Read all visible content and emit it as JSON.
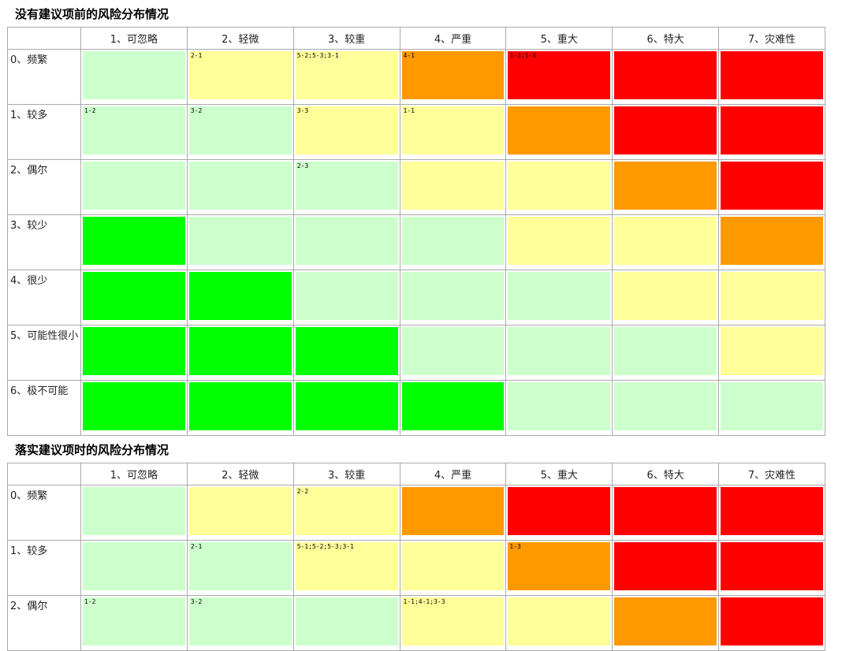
{
  "sections": [
    {
      "title": "没有建议项前的风险分布情况",
      "columns": [
        "1、可忽略",
        "2、轻微",
        "3、较重",
        "4、严重",
        "5、重大",
        "6、特大",
        "7、灾难性"
      ],
      "rows": [
        {
          "label": "0、频繁",
          "cells": [
            {
              "color": "#ccffcc"
            },
            {
              "color": "#ffff99",
              "text": "2-1"
            },
            {
              "color": "#ffff99",
              "text": "5-2;5-3;3-1"
            },
            {
              "color": "#ff9900",
              "text": "4-1"
            },
            {
              "color": "#ff0000",
              "text": "1-3;1-4"
            },
            {
              "color": "#ff0000"
            },
            {
              "color": "#ff0000"
            }
          ]
        },
        {
          "label": "1、较多",
          "cells": [
            {
              "color": "#ccffcc",
              "text": "1-2"
            },
            {
              "color": "#ccffcc",
              "text": "3-2"
            },
            {
              "color": "#ffff99",
              "text": "3-3"
            },
            {
              "color": "#ffff99",
              "text": "1-1"
            },
            {
              "color": "#ff9900"
            },
            {
              "color": "#ff0000"
            },
            {
              "color": "#ff0000"
            }
          ]
        },
        {
          "label": "2、偶尔",
          "cells": [
            {
              "color": "#ccffcc"
            },
            {
              "color": "#ccffcc"
            },
            {
              "color": "#ccffcc",
              "text": "2-3"
            },
            {
              "color": "#ffff99"
            },
            {
              "color": "#ffff99"
            },
            {
              "color": "#ff9900"
            },
            {
              "color": "#ff0000"
            }
          ]
        },
        {
          "label": "3、较少",
          "cells": [
            {
              "color": "#00ff00"
            },
            {
              "color": "#ccffcc"
            },
            {
              "color": "#ccffcc"
            },
            {
              "color": "#ccffcc"
            },
            {
              "color": "#ffff99"
            },
            {
              "color": "#ffff99"
            },
            {
              "color": "#ff9900"
            }
          ]
        },
        {
          "label": "4、很少",
          "cells": [
            {
              "color": "#00ff00"
            },
            {
              "color": "#00ff00"
            },
            {
              "color": "#ccffcc"
            },
            {
              "color": "#ccffcc"
            },
            {
              "color": "#ccffcc"
            },
            {
              "color": "#ffff99"
            },
            {
              "color": "#ffff99"
            }
          ]
        },
        {
          "label": "5、可能性很小",
          "cells": [
            {
              "color": "#00ff00"
            },
            {
              "color": "#00ff00"
            },
            {
              "color": "#00ff00"
            },
            {
              "color": "#ccffcc"
            },
            {
              "color": "#ccffcc"
            },
            {
              "color": "#ccffcc"
            },
            {
              "color": "#ffff99"
            }
          ]
        },
        {
          "label": "6、极不可能",
          "cells": [
            {
              "color": "#00ff00"
            },
            {
              "color": "#00ff00"
            },
            {
              "color": "#00ff00"
            },
            {
              "color": "#00ff00"
            },
            {
              "color": "#ccffcc"
            },
            {
              "color": "#ccffcc"
            },
            {
              "color": "#ccffcc"
            }
          ]
        }
      ]
    },
    {
      "title": "落实建议项时的风险分布情况",
      "columns": [
        "1、可忽略",
        "2、轻微",
        "3、较重",
        "4、严重",
        "5、重大",
        "6、特大",
        "7、灾难性"
      ],
      "rows": [
        {
          "label": "0、频繁",
          "cells": [
            {
              "color": "#ccffcc"
            },
            {
              "color": "#ffff99"
            },
            {
              "color": "#ffff99",
              "text": "2-2"
            },
            {
              "color": "#ff9900"
            },
            {
              "color": "#ff0000"
            },
            {
              "color": "#ff0000"
            },
            {
              "color": "#ff0000"
            }
          ]
        },
        {
          "label": "1、较多",
          "cells": [
            {
              "color": "#ccffcc"
            },
            {
              "color": "#ccffcc",
              "text": "2-1"
            },
            {
              "color": "#ffff99",
              "text": "5-1;5-2;5-3;3-1"
            },
            {
              "color": "#ffff99"
            },
            {
              "color": "#ff9900",
              "text": "1-3"
            },
            {
              "color": "#ff0000"
            },
            {
              "color": "#ff0000"
            }
          ]
        },
        {
          "label": "2、偶尔",
          "cells": [
            {
              "color": "#ccffcc",
              "text": "1-2"
            },
            {
              "color": "#ccffcc",
              "text": "3-2"
            },
            {
              "color": "#ccffcc"
            },
            {
              "color": "#ffff99",
              "text": "1-1;4-1;3-3"
            },
            {
              "color": "#ffff99"
            },
            {
              "color": "#ff9900"
            },
            {
              "color": "#ff0000"
            }
          ]
        }
      ]
    }
  ]
}
